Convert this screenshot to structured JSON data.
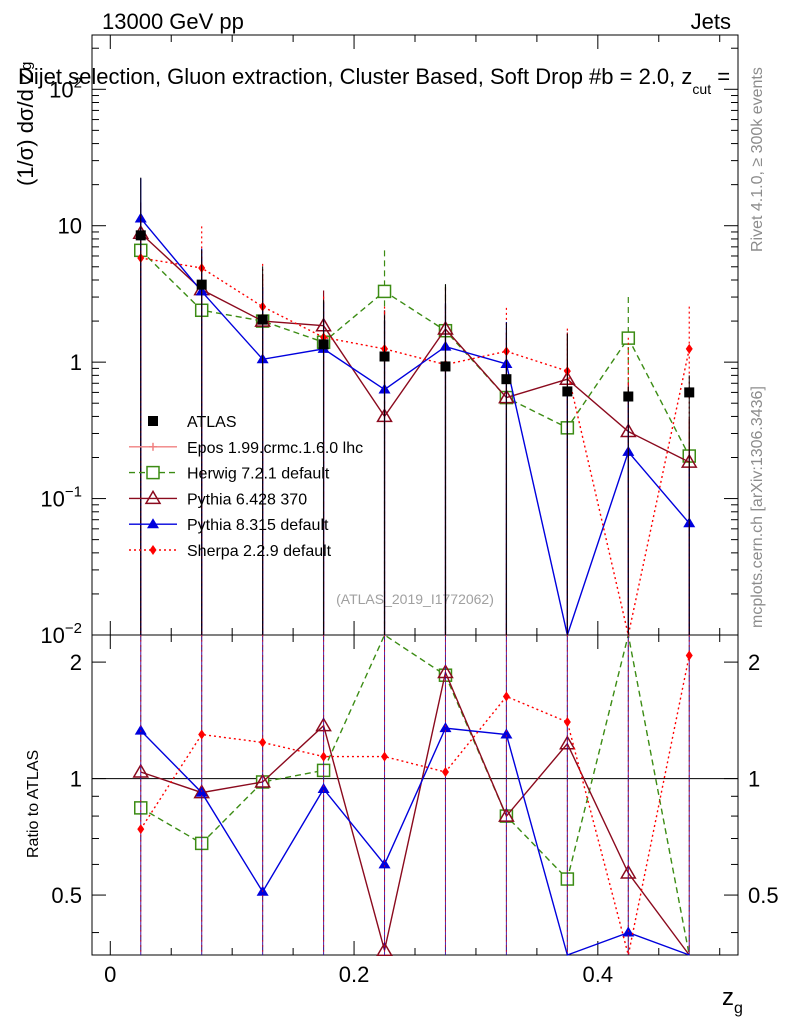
{
  "header": {
    "energy": "13000 GeV pp",
    "process": "Jets",
    "title": "Dijet selection, Gluon extraction, Cluster Based, Soft Drop #b = 2.0, z",
    "title_sub": "cut",
    "title_tail": " ="
  },
  "side": {
    "rivet": "Rivet 4.1.0, ≥ 300k events",
    "mcplots": "mcplots.cern.ch [arXiv:1306.3436]"
  },
  "analysis_tag": "(ATLAS_2019_I1772062)",
  "axes": {
    "ylabel_main": "(1/σ) dσ/d z",
    "ylabel_main_sub": "g",
    "ylabel_ratio": "Ratio to ATLAS",
    "xlabel": "z",
    "xlabel_sub": "g",
    "x_ticks": [
      "0",
      "0.2",
      "0.4"
    ],
    "y_ticks_main": [
      "10",
      "10",
      "1",
      "10",
      "10"
    ],
    "y_ticks_main_exp": [
      "2",
      "",
      "",
      "−1",
      "−2"
    ],
    "y_ticks_ratio": [
      "2",
      "1",
      "0.5"
    ]
  },
  "legend": [
    {
      "label": "ATLAS",
      "color": "#000000",
      "marker": "square-filled",
      "dash": "solid"
    },
    {
      "label": "Epos 1.99.crmc.1.6.0 lhc",
      "color": "#f08080",
      "marker": "plus",
      "dash": "solid"
    },
    {
      "label": "Herwig 7.2.1 default",
      "color": "#3c8c14",
      "marker": "square-open",
      "dash": "dashed"
    },
    {
      "label": "Pythia 6.428 370",
      "color": "#8b0a1e",
      "marker": "triangle-open",
      "dash": "solid"
    },
    {
      "label": "Pythia 8.315 default",
      "color": "#0000dd",
      "marker": "triangle-filled",
      "dash": "solid"
    },
    {
      "label": "Sherpa 2.2.9 default",
      "color": "#ff0000",
      "marker": "diamond-filled",
      "dash": "dotted"
    }
  ],
  "chart_data": {
    "type": "line",
    "title": "Dijet selection, Gluon extraction, Cluster Based, Soft Drop #b = 2.0, z_cut =",
    "xlabel": "z_g",
    "ylabel": "(1/σ) dσ/d z_g",
    "xlim": [
      -0.015,
      0.515
    ],
    "ylim_main": [
      0.01,
      250
    ],
    "yscale_main": "log",
    "ylim_ratio": [
      0.35,
      2.35
    ],
    "yscale_ratio": "log",
    "x": [
      0.025,
      0.075,
      0.125,
      0.175,
      0.225,
      0.275,
      0.325,
      0.375,
      0.425,
      0.475
    ],
    "data": {
      "name": "ATLAS",
      "values": [
        8.5,
        3.7,
        2.05,
        1.35,
        1.1,
        0.93,
        0.75,
        0.61,
        0.56,
        0.6
      ],
      "err_up": [
        14,
        3.0,
        3.0,
        1.5,
        1.1,
        2.8,
        1.2,
        1.0,
        0.1,
        0.2
      ],
      "err_down": [
        8.49,
        3.69,
        2.04,
        1.34,
        1.09,
        0.92,
        0.74,
        0.6,
        0.55,
        0.59
      ]
    },
    "series": [
      {
        "name": "Herwig 7.2.1 default",
        "values": [
          6.6,
          2.4,
          2.0,
          1.4,
          3.3,
          1.7,
          0.55,
          0.33,
          1.5,
          0.205
        ],
        "err_up": [
          5,
          1.5,
          1.5,
          1.4,
          3.3,
          2.0,
          0.6,
          0.2,
          1.5,
          0.1
        ],
        "ratio": [
          0.84,
          0.68,
          0.98,
          1.05,
          2.9,
          1.85,
          0.8,
          0.55,
          2.5,
          0.34
        ]
      },
      {
        "name": "Pythia 6.428 370",
        "values": [
          8.8,
          3.4,
          2.0,
          1.85,
          0.4,
          1.75,
          0.55,
          0.75,
          0.31,
          0.185
        ],
        "err_up": [
          6,
          2.5,
          2.4,
          1.5,
          2.0,
          1.8,
          1.1,
          0.9,
          0.4,
          0.2
        ],
        "ratio": [
          1.04,
          0.92,
          0.98,
          1.37,
          0.36,
          1.88,
          0.8,
          1.23,
          0.57,
          0.31
        ]
      },
      {
        "name": "Pythia 8.315 default",
        "values": [
          11.3,
          3.3,
          1.05,
          1.25,
          0.63,
          1.3,
          0.97,
          0.0098,
          0.22,
          0.066
        ],
        "err_up": [
          11,
          3.5,
          2.5,
          1.5,
          1.4,
          1.4,
          1.0,
          0.6,
          0.3,
          0.1
        ],
        "ratio": [
          1.33,
          0.92,
          0.51,
          0.94,
          0.6,
          1.35,
          1.3,
          0.02,
          0.4,
          0.11
        ]
      },
      {
        "name": "Sherpa 2.2.9 default",
        "values": [
          5.8,
          4.9,
          2.55,
          1.52,
          1.25,
          0.96,
          1.2,
          0.86,
          0.0093,
          1.25
        ],
        "err_up": [
          6,
          5.0,
          2.7,
          1.5,
          1.3,
          1.6,
          1.3,
          0.9,
          1.5,
          1.3
        ],
        "ratio": [
          0.74,
          1.3,
          1.24,
          1.14,
          1.14,
          1.04,
          1.63,
          1.4,
          0.01,
          2.08
        ]
      }
    ]
  }
}
